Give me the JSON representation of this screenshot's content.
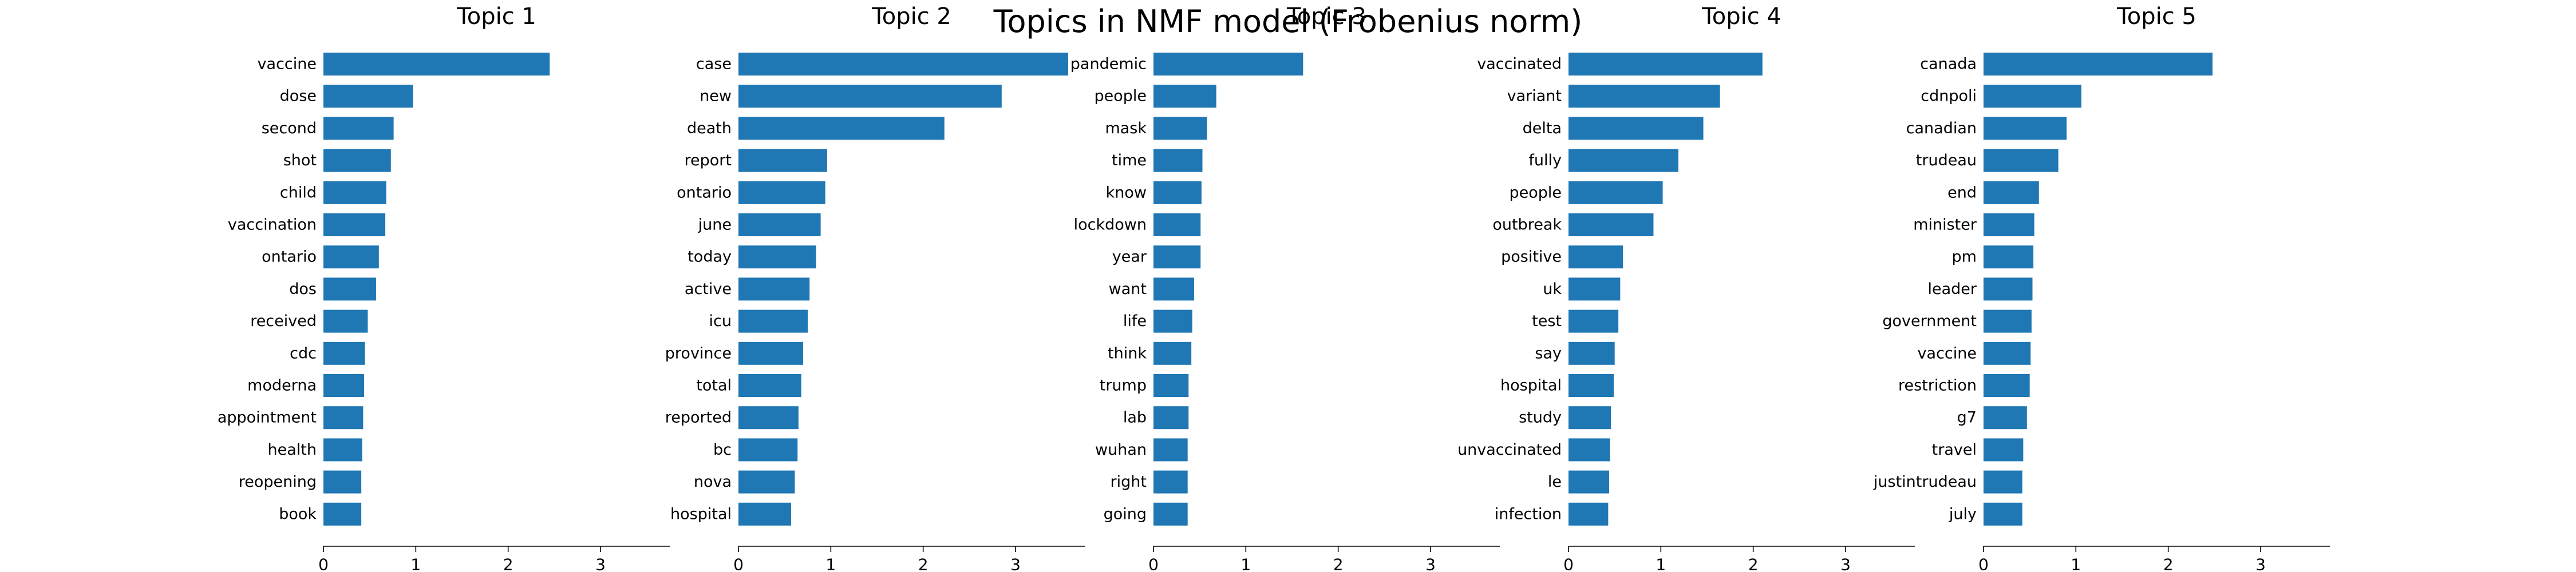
{
  "title": "Topics in NMF model (Frobenius norm)",
  "bar_color": "#1f77b4",
  "chart_data": [
    {
      "type": "bar",
      "orientation": "horizontal",
      "title": "Topic 1",
      "categories": [
        "vaccine",
        "dose",
        "second",
        "shot",
        "child",
        "vaccination",
        "ontario",
        "dos",
        "received",
        "cdc",
        "moderna",
        "appointment",
        "health",
        "reopening",
        "book"
      ],
      "values": [
        2.45,
        0.97,
        0.76,
        0.73,
        0.68,
        0.67,
        0.6,
        0.57,
        0.48,
        0.45,
        0.44,
        0.43,
        0.42,
        0.41,
        0.41
      ],
      "xlim": [
        0,
        3.75
      ],
      "xticks": [
        "0",
        "1",
        "2",
        "3"
      ]
    },
    {
      "type": "bar",
      "orientation": "horizontal",
      "title": "Topic 2",
      "categories": [
        "case",
        "new",
        "death",
        "report",
        "ontario",
        "june",
        "today",
        "active",
        "icu",
        "province",
        "total",
        "reported",
        "bc",
        "nova",
        "hospital"
      ],
      "values": [
        3.57,
        2.85,
        2.23,
        0.96,
        0.94,
        0.89,
        0.84,
        0.77,
        0.75,
        0.7,
        0.68,
        0.65,
        0.64,
        0.61,
        0.57
      ],
      "xlim": [
        0,
        3.75
      ],
      "xticks": [
        "0",
        "1",
        "2",
        "3"
      ]
    },
    {
      "type": "bar",
      "orientation": "horizontal",
      "title": "Topic 3",
      "categories": [
        "pandemic",
        "people",
        "mask",
        "time",
        "know",
        "lockdown",
        "year",
        "want",
        "life",
        "think",
        "trump",
        "lab",
        "wuhan",
        "right",
        "going"
      ],
      "values": [
        1.62,
        0.68,
        0.58,
        0.53,
        0.52,
        0.51,
        0.51,
        0.44,
        0.42,
        0.41,
        0.38,
        0.38,
        0.37,
        0.37,
        0.37
      ],
      "xlim": [
        0,
        3.75
      ],
      "xticks": [
        "0",
        "1",
        "2",
        "3"
      ]
    },
    {
      "type": "bar",
      "orientation": "horizontal",
      "title": "Topic 4",
      "categories": [
        "vaccinated",
        "variant",
        "delta",
        "fully",
        "people",
        "outbreak",
        "positive",
        "uk",
        "test",
        "say",
        "hospital",
        "study",
        "unvaccinated",
        "le",
        "infection"
      ],
      "values": [
        2.1,
        1.64,
        1.46,
        1.19,
        1.02,
        0.92,
        0.59,
        0.56,
        0.54,
        0.5,
        0.49,
        0.46,
        0.45,
        0.44,
        0.43
      ],
      "xlim": [
        0,
        3.75
      ],
      "xticks": [
        "0",
        "1",
        "2",
        "3"
      ]
    },
    {
      "type": "bar",
      "orientation": "horizontal",
      "title": "Topic 5",
      "categories": [
        "canada",
        "cdnpoli",
        "canadian",
        "trudeau",
        "end",
        "minister",
        "pm",
        "leader",
        "government",
        "vaccine",
        "restriction",
        "g7",
        "travel",
        "justintrudeau",
        "july"
      ],
      "values": [
        2.48,
        1.06,
        0.9,
        0.81,
        0.6,
        0.55,
        0.54,
        0.53,
        0.52,
        0.51,
        0.5,
        0.47,
        0.43,
        0.42,
        0.42
      ],
      "xlim": [
        0,
        3.75
      ],
      "xticks": [
        "0",
        "1",
        "2",
        "3"
      ]
    }
  ]
}
